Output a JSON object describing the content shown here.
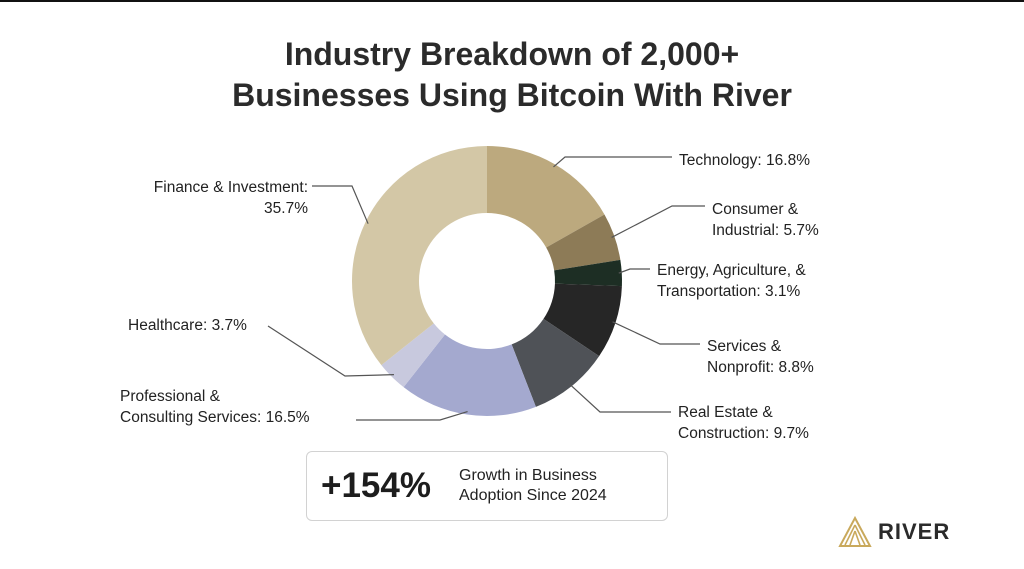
{
  "title_line1": "Industry Breakdown of 2,000+",
  "title_line2": "Businesses Using Bitcoin With River",
  "chart_data": {
    "type": "pie",
    "title": "Industry Breakdown of 2,000+ Businesses Using Bitcoin With River",
    "unit": "%",
    "slices": [
      {
        "label_line1": "Technology: 16.8%",
        "label_line2": "",
        "name": "Technology",
        "value": 16.8,
        "color": "#bca97e"
      },
      {
        "label_line1": "Consumer &",
        "label_line2": "Industrial: 5.7%",
        "name": "Consumer & Industrial",
        "value": 5.7,
        "color": "#8d7b57"
      },
      {
        "label_line1": "Energy, Agriculture, &",
        "label_line2": "Transportation: 3.1%",
        "name": "Energy, Agriculture, & Transportation",
        "value": 3.1,
        "color": "#1d2e24"
      },
      {
        "label_line1": "Services &",
        "label_line2": "Nonprofit: 8.8%",
        "name": "Services & Nonprofit",
        "value": 8.8,
        "color": "#262626"
      },
      {
        "label_line1": "Real Estate &",
        "label_line2": "Construction: 9.7%",
        "name": "Real Estate & Construction",
        "value": 9.7,
        "color": "#4f5257"
      },
      {
        "label_line1": "Professional &",
        "label_line2": "Consulting Services: 16.5%",
        "name": "Professional & Consulting Services",
        "value": 16.5,
        "color": "#a4a9cf"
      },
      {
        "label_line1": "Healthcare: 3.7%",
        "label_line2": "",
        "name": "Healthcare",
        "value": 3.7,
        "color": "#c8c9de"
      },
      {
        "label_line1": "Finance & Investment:",
        "label_line2": "35.7%",
        "name": "Finance & Investment",
        "value": 35.7,
        "color": "#d3c7a6"
      }
    ]
  },
  "callout": {
    "value": "+154%",
    "line1": "Growth in Business",
    "line2": "Adoption Since 2024"
  },
  "brand": {
    "name": "RIVER",
    "icon": "river-logo-icon",
    "color": "#c9a95c"
  }
}
